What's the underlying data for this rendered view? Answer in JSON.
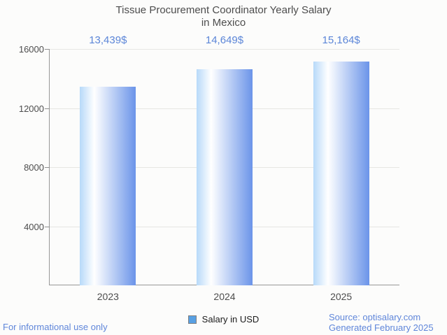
{
  "title": {
    "line1": "Tissue Procurement Coordinator Yearly Salary",
    "line2": "in Mexico"
  },
  "chart_data": {
    "type": "bar",
    "title": "Tissue Procurement Coordinator Yearly Salary in Mexico",
    "categories": [
      "2023",
      "2024",
      "2025"
    ],
    "values": [
      13439,
      14649,
      15164
    ],
    "value_labels": [
      "13,439$",
      "14,649$",
      "15,164$"
    ],
    "series_name": "Salary in USD",
    "xlabel": "",
    "ylabel": "",
    "ylim": [
      0,
      16000
    ],
    "yticks": [
      4000,
      8000,
      12000,
      16000
    ],
    "grid": true,
    "legend_position": "bottom"
  },
  "legend": {
    "label": "Salary in USD"
  },
  "footer": {
    "left": "For informational use only",
    "source": "Source: optisalary.com",
    "generated": "Generated February 2025"
  },
  "colors": {
    "background": "#fcfcfb",
    "title_text": "#4d4d4d",
    "axis_text": "#4d4d4d",
    "value_text": "#5c86d8",
    "footer_text": "#5f86da",
    "gridline": "#e6e6e3",
    "axis_line": "#979797",
    "bar_gradient_left": "#b7d9f9",
    "bar_gradient_mid": "#ffffff",
    "bar_gradient_right": "#6b94e9",
    "legend_swatch": "#58a0e3"
  }
}
